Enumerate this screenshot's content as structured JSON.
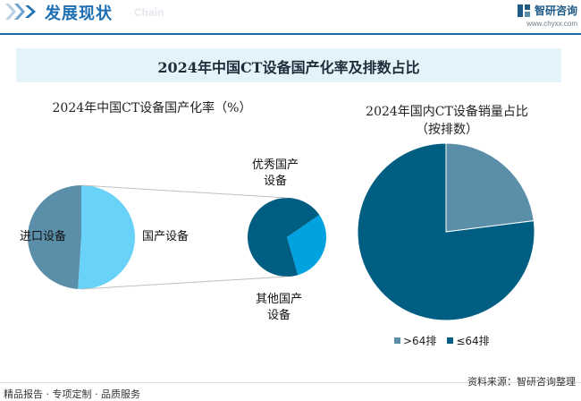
{
  "header": {
    "title": "发展现状",
    "subtitle": "Chain",
    "brand_name": "智研咨询",
    "brand_url": "www.chyxx.com"
  },
  "main_title": "2024年中国CT设备国产化率及排数占比",
  "footer": {
    "left": "精品报告 · 专项定制 · 品质服务",
    "source": "资料来源：智研咨询整理"
  },
  "colors": {
    "import": "#5b8ea9",
    "domestic": "#68d2f8",
    "excellent": "#005e83",
    "other": "#00a2e0",
    "gt64": "#5b8ea9",
    "le64": "#005e83"
  },
  "chart_data": [
    {
      "type": "pie",
      "title": "2024年中国CT设备国产化率（%）",
      "slices": [
        {
          "label": "进口设备",
          "value": 49
        },
        {
          "label": "国产设备",
          "value": 51
        }
      ],
      "sub_pie": {
        "parent": "国产设备",
        "slices": [
          {
            "label": "优秀国产设备",
            "value": 70
          },
          {
            "label": "其他国产设备",
            "value": 30
          }
        ]
      }
    },
    {
      "type": "pie",
      "title": "2024年国内CT设备销量占比（按排数）",
      "slices": [
        {
          "label": ">64排",
          "value": 23
        },
        {
          "label": "≤64排",
          "value": 77
        }
      ],
      "legend": "bottom"
    }
  ]
}
